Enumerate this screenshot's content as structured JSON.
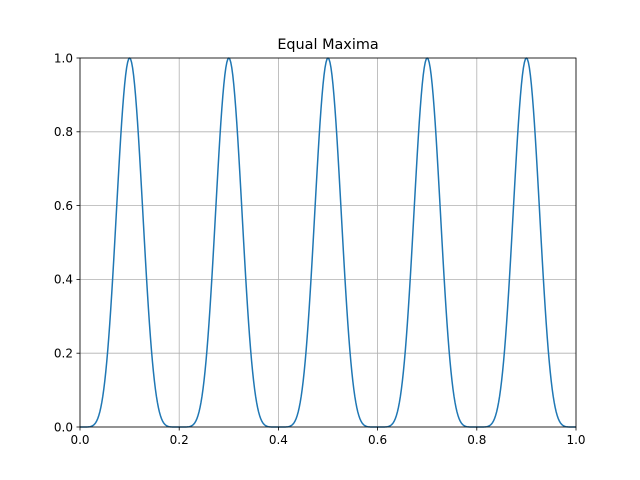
{
  "chart_data": {
    "type": "line",
    "title": "Equal Maxima",
    "xlabel": "",
    "ylabel": "",
    "xlim": [
      0,
      1
    ],
    "ylim": [
      0,
      1
    ],
    "grid": true,
    "x_ticks": [
      0,
      0.2,
      0.4,
      0.6,
      0.8,
      1.0
    ],
    "y_ticks": [
      0,
      0.2,
      0.4,
      0.6,
      0.8,
      1.0
    ],
    "x_tick_labels": [
      "0.0",
      "0.2",
      "0.4",
      "0.6",
      "0.8",
      "1.0"
    ],
    "y_tick_labels": [
      "0.0",
      "0.2",
      "0.4",
      "0.6",
      "0.8",
      "1.0"
    ],
    "series": [
      {
        "color": "#1f77b4",
        "function": "sin(5*pi*x)^6",
        "peaks_x": [
          0.1,
          0.3,
          0.5,
          0.7,
          0.9
        ],
        "peak_value": 1.0,
        "sample_count": 501
      }
    ]
  }
}
